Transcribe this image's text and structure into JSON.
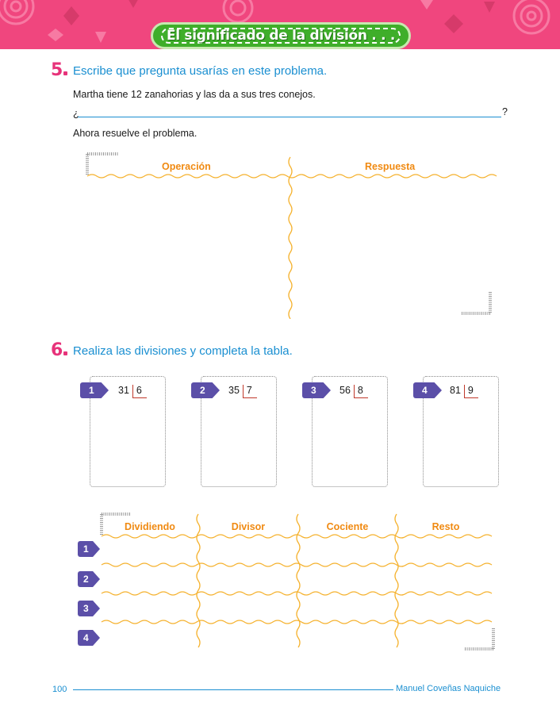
{
  "header": {
    "title": "El significado de la división . . .",
    "band_color": "#f0467e",
    "pill_color": "#3fae2a"
  },
  "exercise5": {
    "number": "5",
    "title": "Escribe que pregunta usarías en este problema.",
    "problem": "Martha tiene 12 zanahorias y las da a sus tres conejos.",
    "question_open": "¿",
    "question_close": "?",
    "instruction": "Ahora resuelve el problema.",
    "col_operation": "Operación",
    "col_answer": "Respuesta"
  },
  "exercise6": {
    "number": "6",
    "title": "Realiza las divisiones y completa la tabla.",
    "divisions": [
      {
        "tag": "1",
        "dividend": "31",
        "divisor": "6"
      },
      {
        "tag": "2",
        "dividend": "35",
        "divisor": "7"
      },
      {
        "tag": "3",
        "dividend": "56",
        "divisor": "8"
      },
      {
        "tag": "4",
        "dividend": "81",
        "divisor": "9"
      }
    ],
    "table": {
      "headers": [
        "Dividiendo",
        "Divisor",
        "Cociente",
        "Resto"
      ],
      "rows": [
        "1",
        "2",
        "3",
        "4"
      ]
    }
  },
  "footer": {
    "page_number": "100",
    "author": "Manuel Coveñas Naquiche"
  },
  "colors": {
    "heading_blue": "#1a8fd1",
    "number_pink": "#e7337a",
    "header_orange": "#f08a12",
    "tag_purple": "#5b4fa8"
  }
}
